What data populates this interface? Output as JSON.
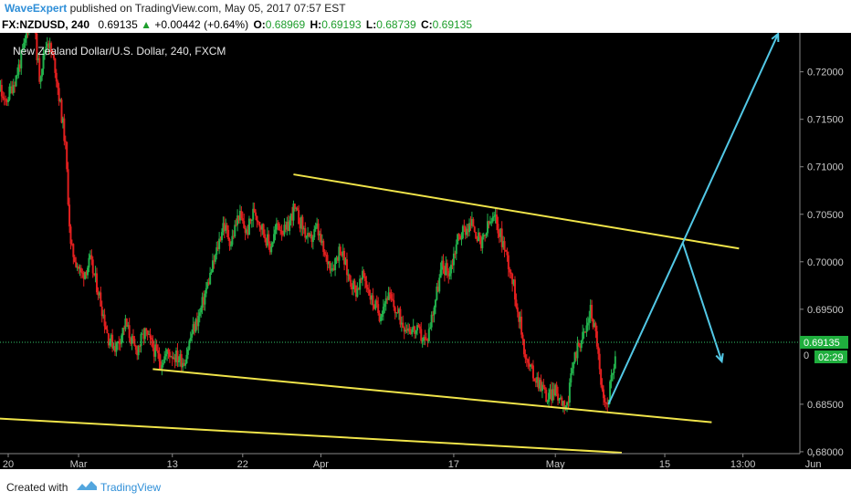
{
  "header": {
    "author": "WaveExpert",
    "published_text": "published on TradingView.com, May 05, 2017 07:57 EST"
  },
  "quote": {
    "symbol": "FX:NZDUSD, 240",
    "last": "0.69135",
    "change_arrow": "▲",
    "change": "+0.00442 (+0.64%)",
    "open_label": "O:",
    "open": "0.68969",
    "high_label": "H:",
    "high": "0.69193",
    "low_label": "L:",
    "low": "0.68739",
    "close_label": "C:",
    "close": "0.69135"
  },
  "chart_data": {
    "type": "candlestick",
    "title": "New Zealand Dollar/U.S. Dollar, 240, FXCM",
    "ylim": [
      0.6798,
      0.7241
    ],
    "y_ticks": [
      "0.72000",
      "0.71500",
      "0.71000",
      "0.70500",
      "0.70000",
      "0.69500",
      "0.68500",
      "0.68000"
    ],
    "x_ticks": [
      "20",
      "Mar",
      "13",
      "22",
      "Apr",
      "17",
      "May",
      "15",
      "13:00",
      "Jun"
    ],
    "x_tick_dates": [
      20,
      29,
      41,
      50,
      60,
      77,
      90,
      104,
      114,
      123
    ],
    "price_label": "0.69135",
    "countdown_label": "02:29",
    "partial_tick_label": "0",
    "path": [
      [
        17,
        0.719
      ],
      [
        18,
        0.7215
      ],
      [
        19.5,
        0.7165
      ],
      [
        21,
        0.7195
      ],
      [
        22,
        0.7225
      ],
      [
        23,
        0.727
      ],
      [
        24,
        0.7195
      ],
      [
        25,
        0.7235
      ],
      [
        26,
        0.7205
      ],
      [
        27.3,
        0.7125
      ],
      [
        28,
        0.7015
      ],
      [
        29.4,
        0.6985
      ],
      [
        30.5,
        0.7
      ],
      [
        31.5,
        0.697
      ],
      [
        32.8,
        0.692
      ],
      [
        33.8,
        0.691
      ],
      [
        35,
        0.6935
      ],
      [
        36.3,
        0.6905
      ],
      [
        37.5,
        0.6925
      ],
      [
        39.5,
        0.6895
      ],
      [
        40.5,
        0.6905
      ],
      [
        41.5,
        0.69
      ],
      [
        42.5,
        0.6895
      ],
      [
        43.5,
        0.6925
      ],
      [
        44.5,
        0.6945
      ],
      [
        45.3,
        0.697
      ],
      [
        46.5,
        0.7005
      ],
      [
        47.5,
        0.704
      ],
      [
        48.5,
        0.702
      ],
      [
        49.5,
        0.705
      ],
      [
        50.5,
        0.703
      ],
      [
        51.5,
        0.7055
      ],
      [
        52.5,
        0.7035
      ],
      [
        53.5,
        0.7015
      ],
      [
        54.5,
        0.704
      ],
      [
        55.5,
        0.703
      ],
      [
        56.5,
        0.7055
      ],
      [
        57.5,
        0.704
      ],
      [
        58.5,
        0.702
      ],
      [
        59.5,
        0.7035
      ],
      [
        60.5,
        0.7005
      ],
      [
        61.5,
        0.6995
      ],
      [
        62.5,
        0.7015
      ],
      [
        63.5,
        0.6985
      ],
      [
        64.5,
        0.697
      ],
      [
        65.5,
        0.6985
      ],
      [
        66.5,
        0.696
      ],
      [
        67.5,
        0.6945
      ],
      [
        68.5,
        0.6965
      ],
      [
        69.5,
        0.695
      ],
      [
        70.5,
        0.6935
      ],
      [
        71.5,
        0.693
      ],
      [
        72.5,
        0.6925
      ],
      [
        73.5,
        0.6915
      ],
      [
        74.5,
        0.6955
      ],
      [
        75.5,
        0.6995
      ],
      [
        76.5,
        0.699
      ],
      [
        77.5,
        0.7025
      ],
      [
        78.5,
        0.7035
      ],
      [
        79.5,
        0.704
      ],
      [
        80.5,
        0.7015
      ],
      [
        81.5,
        0.704
      ],
      [
        82.3,
        0.7045
      ],
      [
        83.3,
        0.702
      ],
      [
        84.3,
        0.699
      ],
      [
        85.3,
        0.6945
      ],
      [
        86.3,
        0.6895
      ],
      [
        87.3,
        0.688
      ],
      [
        88.3,
        0.687
      ],
      [
        89,
        0.6855
      ],
      [
        89.8,
        0.6865
      ],
      [
        90.8,
        0.6855
      ],
      [
        91.6,
        0.685
      ],
      [
        92.3,
        0.6895
      ],
      [
        93,
        0.6915
      ],
      [
        93.8,
        0.6925
      ],
      [
        94.5,
        0.695
      ],
      [
        95.3,
        0.692
      ],
      [
        95.8,
        0.687
      ],
      [
        96.3,
        0.6845
      ],
      [
        96.8,
        0.686
      ],
      [
        97.3,
        0.688
      ],
      [
        97.8,
        0.691
      ]
    ],
    "seed": 11,
    "drawings": [
      {
        "name": "upper-trendline",
        "color": "#f0e44a",
        "points": [
          [
            56.5,
            0.7092
          ],
          [
            113.5,
            0.7014
          ]
        ]
      },
      {
        "name": "lower-trendline",
        "color": "#f0e44a",
        "points": [
          [
            38.5,
            0.6887
          ],
          [
            110,
            0.6831
          ]
        ]
      },
      {
        "name": "bottom-trendline",
        "color": "#f0e44a",
        "points": [
          [
            16.5,
            0.6836
          ],
          [
            98.5,
            0.6799
          ]
        ]
      },
      {
        "name": "projection-up-1",
        "color": "#52c8e6",
        "points": [
          [
            96.8,
            0.685
          ],
          [
            106.3,
            0.702
          ]
        ]
      },
      {
        "name": "projection-down",
        "color": "#52c8e6",
        "points": [
          [
            106.3,
            0.702
          ],
          [
            111.3,
            0.6895
          ]
        ]
      },
      {
        "name": "projection-up-2",
        "color": "#52c8e6",
        "points": [
          [
            106.3,
            0.702
          ],
          [
            118.5,
            0.724
          ]
        ]
      }
    ]
  },
  "footer": {
    "created_with": "Created with",
    "brand": "TradingView"
  },
  "colors": {
    "background": "#000000",
    "bull": "#22b14c",
    "bear": "#e21f1f",
    "trend": "#f0e44a",
    "projection": "#52c8e6",
    "price_line": "#33c96a",
    "price_label_bg": "#1fae3d"
  }
}
